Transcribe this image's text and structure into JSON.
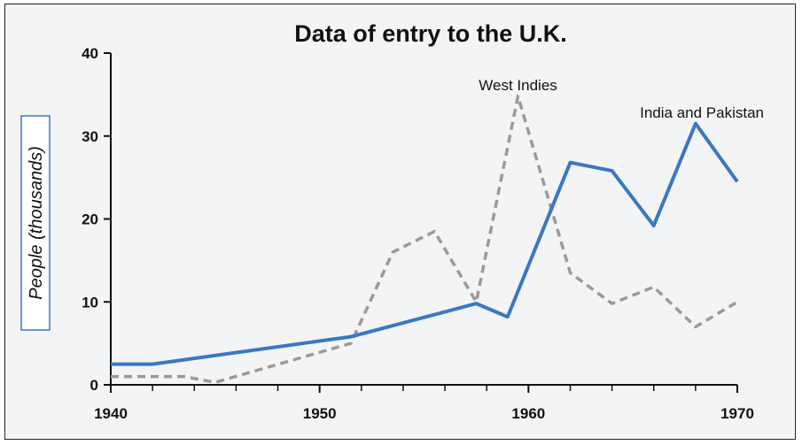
{
  "chart_data": {
    "type": "line",
    "title": "Data of entry to the U.K.",
    "ylabel": "People (thousands)",
    "xlabel": "",
    "xlim": [
      1940,
      1970
    ],
    "ylim": [
      0,
      40
    ],
    "x_ticks": [
      1940,
      1950,
      1960,
      1970
    ],
    "y_ticks": [
      0,
      10,
      20,
      30,
      40
    ],
    "grid": false,
    "legend": "none",
    "series": [
      {
        "name": "India and Pakistan",
        "style": "solid",
        "color": "#3a78c2",
        "points": [
          {
            "x": 1940,
            "y": 2.5
          },
          {
            "x": 1942,
            "y": 2.5
          },
          {
            "x": 1951.5,
            "y": 5.8
          },
          {
            "x": 1957.5,
            "y": 9.8
          },
          {
            "x": 1959,
            "y": 8.2
          },
          {
            "x": 1962,
            "y": 26.8
          },
          {
            "x": 1964,
            "y": 25.8
          },
          {
            "x": 1966,
            "y": 19.2
          },
          {
            "x": 1968,
            "y": 31.5
          },
          {
            "x": 1970,
            "y": 24.5
          }
        ]
      },
      {
        "name": "West Indies",
        "style": "dashed",
        "color": "#9a9a9a",
        "points": [
          {
            "x": 1940,
            "y": 1.0
          },
          {
            "x": 1943.5,
            "y": 1.0
          },
          {
            "x": 1945,
            "y": 0.3
          },
          {
            "x": 1951.5,
            "y": 5.0
          },
          {
            "x": 1953.5,
            "y": 16.0
          },
          {
            "x": 1955.5,
            "y": 18.5
          },
          {
            "x": 1957.5,
            "y": 10.0
          },
          {
            "x": 1959.5,
            "y": 34.8
          },
          {
            "x": 1962,
            "y": 13.5
          },
          {
            "x": 1964,
            "y": 9.8
          },
          {
            "x": 1966,
            "y": 11.8
          },
          {
            "x": 1968,
            "y": 7.0
          },
          {
            "x": 1970,
            "y": 10.0
          }
        ]
      }
    ],
    "annotations": [
      {
        "text": "West Indies",
        "x": 1959.5,
        "y": 35.5
      },
      {
        "text": "India and Pakistan",
        "x": 1970,
        "y": 32.2
      }
    ]
  }
}
